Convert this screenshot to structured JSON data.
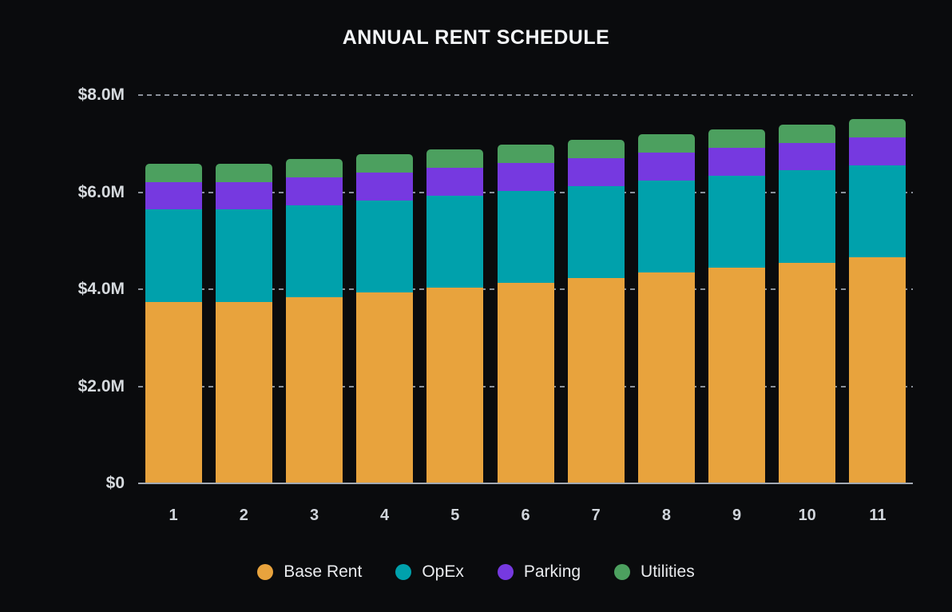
{
  "chart": {
    "title": "ANNUAL RENT SCHEDULE"
  },
  "colors": {
    "background": "#0a0b0d",
    "title_text": "#f4f6f8",
    "axis_label_text": "#d6dade",
    "grid_dashed": "#a0a7b2",
    "baseline": "#a3aab4",
    "base_rent": "#e8a33d",
    "opex": "#00a1ac",
    "parking": "#7639e0",
    "utilities": "#4ca05f"
  },
  "chart_data": {
    "type": "bar",
    "stacked": true,
    "title": "ANNUAL RENT SCHEDULE",
    "categories": [
      "1",
      "2",
      "3",
      "4",
      "5",
      "6",
      "7",
      "8",
      "9",
      "10",
      "11"
    ],
    "series": [
      {
        "name": "Base Rent",
        "color": "#e8a33d",
        "values": [
          3.74,
          3.74,
          3.83,
          3.93,
          4.03,
          4.13,
          4.23,
          4.34,
          4.44,
          4.55,
          4.66
        ]
      },
      {
        "name": "OpEx",
        "color": "#00a1ac",
        "values": [
          1.9,
          1.9,
          1.9,
          1.9,
          1.9,
          1.9,
          1.9,
          1.9,
          1.9,
          1.9,
          1.9
        ]
      },
      {
        "name": "Parking",
        "color": "#7639e0",
        "values": [
          0.57,
          0.57,
          0.57,
          0.57,
          0.57,
          0.57,
          0.57,
          0.57,
          0.57,
          0.57,
          0.57
        ]
      },
      {
        "name": "Utilities",
        "color": "#4ca05f",
        "values": [
          0.38,
          0.38,
          0.38,
          0.38,
          0.38,
          0.38,
          0.38,
          0.38,
          0.38,
          0.38,
          0.38
        ]
      }
    ],
    "unit": "USD millions",
    "xlabel": "",
    "ylabel": "",
    "ylim": [
      0,
      8
    ],
    "y_ticks": [
      {
        "label": "$0",
        "value": 0
      },
      {
        "label": "$2.0M",
        "value": 2
      },
      {
        "label": "$4.0M",
        "value": 4
      },
      {
        "label": "$6.0M",
        "value": 6
      },
      {
        "label": "$8.0M",
        "value": 8
      }
    ],
    "grid": "dashed horizontal, top gridline fully visible",
    "legend_position": "bottom"
  }
}
